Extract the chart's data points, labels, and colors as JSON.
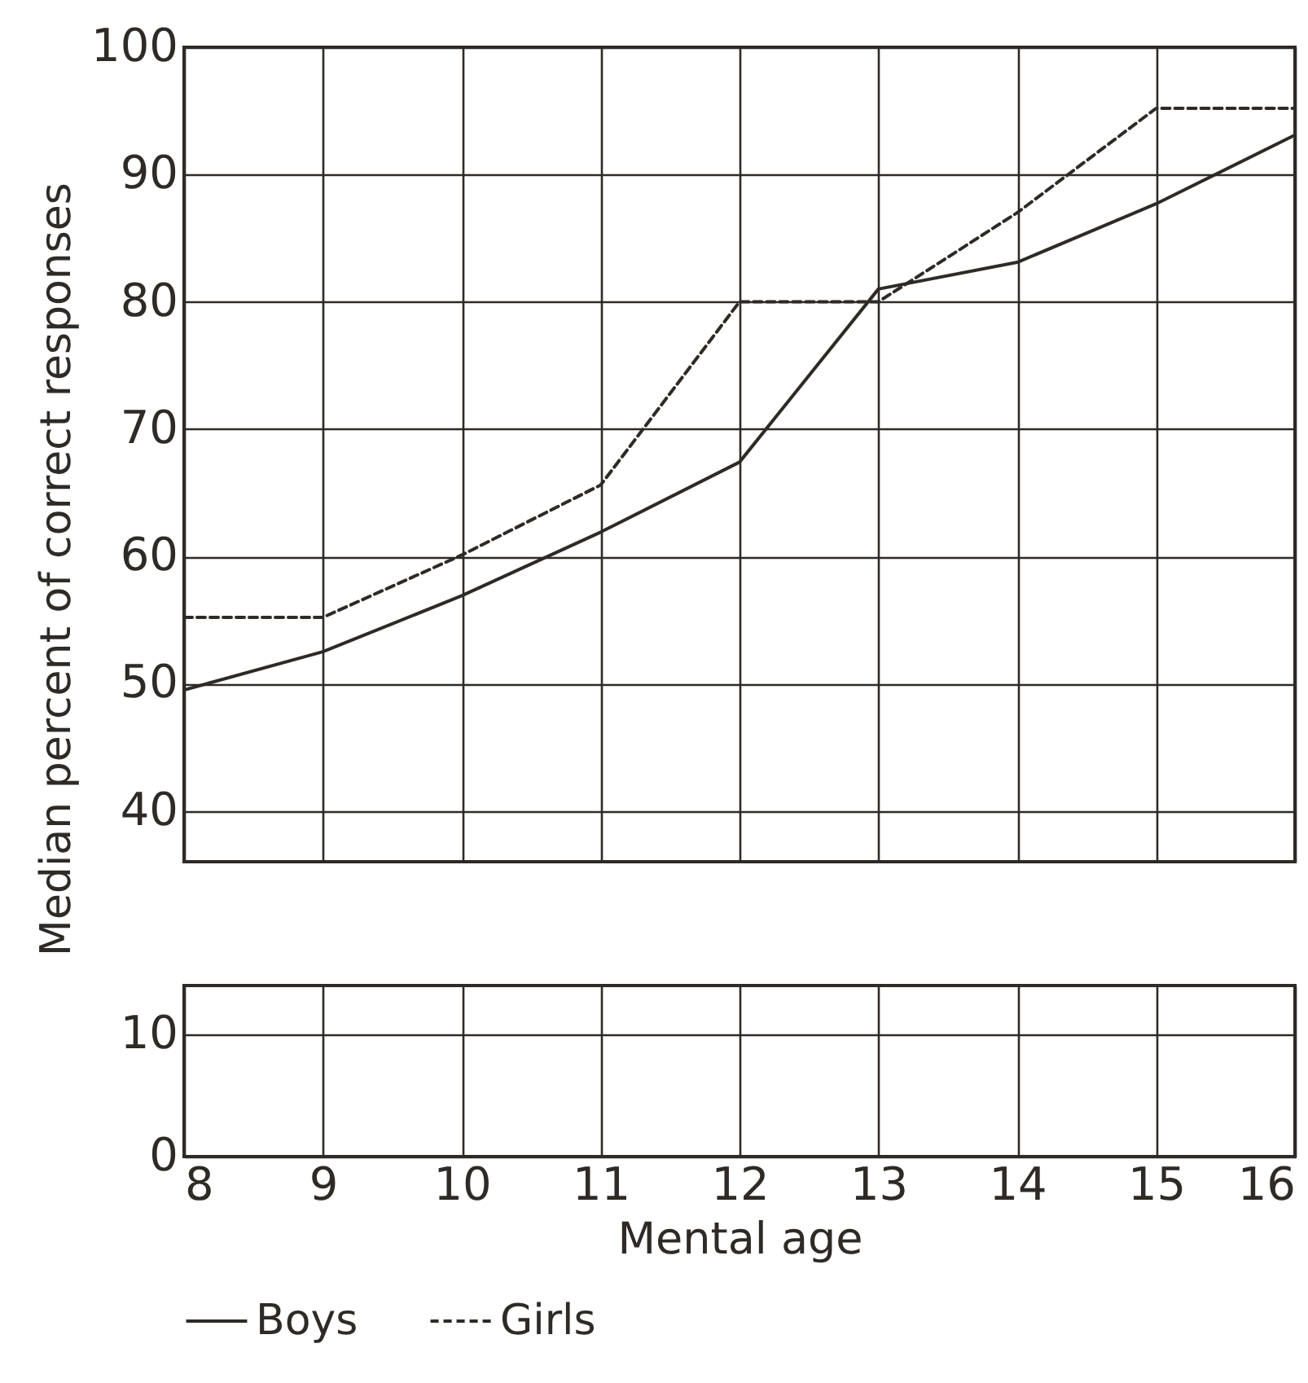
{
  "chart_data": [
    {
      "type": "line",
      "ylabel": "Median percent of correct responses",
      "x": [
        8,
        9,
        10,
        11,
        12,
        13,
        14,
        15,
        16
      ],
      "series": [
        {
          "name": "Boys",
          "color": "#2f2a25",
          "line_style": "solid",
          "values": [
            49.5,
            52.5,
            56.9,
            61.9,
            67.4,
            81.0,
            83.1,
            87.7,
            93.1
          ]
        },
        {
          "name": "Girls",
          "color": "#2f2a25",
          "line_style": "dashed",
          "values": [
            55.2,
            55.2,
            60.1,
            65.6,
            80,
            80,
            87.0,
            95.2,
            95.2
          ]
        }
      ],
      "xlim": [
        8,
        16
      ],
      "xticks": [
        8,
        9,
        10,
        11,
        12,
        13,
        14,
        15,
        16
      ],
      "ylim": [
        36,
        100
      ],
      "yticks": [
        40,
        50,
        60,
        70,
        80,
        90,
        100
      ],
      "tick_labels": "y",
      "grid": true,
      "legend": "bottom"
    },
    {
      "type": "line",
      "xlabel": "Mental age",
      "xlim": [
        8,
        16
      ],
      "xticks": [
        8,
        9,
        10,
        11,
        12,
        13,
        14,
        15,
        16
      ],
      "ylim": [
        0,
        14
      ],
      "yticks": [
        0,
        10
      ],
      "grid": true
    }
  ]
}
